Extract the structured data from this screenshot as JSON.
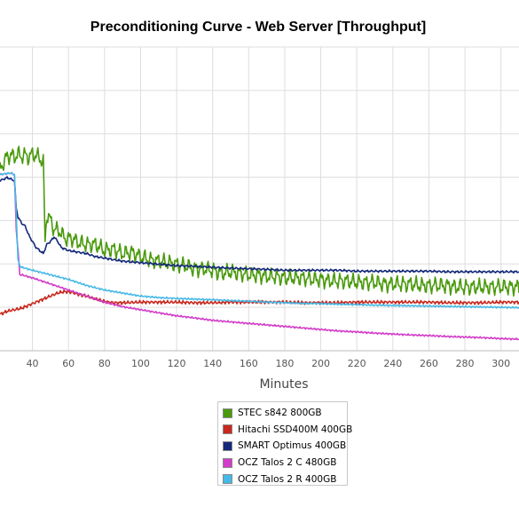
{
  "chart_data": {
    "type": "line",
    "title": "Preconditioning Curve - Web Server [Throughput]",
    "xlabel": "Minutes",
    "ylabel": "",
    "xlim": [
      22,
      310
    ],
    "ylim": [
      0,
      1
    ],
    "x_ticks": [
      40,
      60,
      80,
      100,
      120,
      140,
      160,
      180,
      200,
      220,
      240,
      260,
      280,
      300
    ],
    "grid": true,
    "legend_position": "bottom-center",
    "series": [
      {
        "name": "STEC s842 800GB",
        "color": "#4a9a0c",
        "x": [
          22,
          24,
          26,
          28,
          30,
          32,
          34,
          36,
          38,
          40,
          42,
          44,
          46,
          47,
          48,
          50,
          52,
          55,
          58,
          62,
          66,
          70,
          75,
          80,
          85,
          90,
          95,
          100,
          105,
          110,
          115,
          120,
          125,
          130,
          135,
          140,
          145,
          150,
          155,
          160,
          165,
          170,
          175,
          180,
          185,
          190,
          195,
          200,
          205,
          210,
          215,
          220,
          225,
          230,
          235,
          240,
          245,
          250,
          255,
          260,
          265,
          270,
          275,
          280,
          285,
          290,
          295,
          300,
          305,
          310
        ],
        "y": [
          0.6,
          0.62,
          0.64,
          0.645,
          0.638,
          0.648,
          0.64,
          0.645,
          0.637,
          0.648,
          0.642,
          0.635,
          0.62,
          0.36,
          0.45,
          0.43,
          0.4,
          0.395,
          0.37,
          0.37,
          0.355,
          0.35,
          0.35,
          0.33,
          0.335,
          0.32,
          0.325,
          0.31,
          0.3,
          0.295,
          0.29,
          0.285,
          0.28,
          0.27,
          0.27,
          0.265,
          0.255,
          0.26,
          0.255,
          0.25,
          0.25,
          0.245,
          0.245,
          0.24,
          0.24,
          0.24,
          0.235,
          0.235,
          0.23,
          0.23,
          0.23,
          0.225,
          0.225,
          0.225,
          0.22,
          0.22,
          0.22,
          0.22,
          0.215,
          0.215,
          0.215,
          0.215,
          0.21,
          0.21,
          0.21,
          0.21,
          0.21,
          0.21,
          0.21,
          0.21
        ],
        "noise": 0.03,
        "noise_period": 3.5
      },
      {
        "name": "Hitachi SSD400M 400GB",
        "color": "#c8281e",
        "x": [
          22,
          26,
          30,
          34,
          38,
          42,
          46,
          50,
          54,
          58,
          62,
          66,
          70,
          74,
          78,
          82,
          86,
          90,
          100,
          110,
          120,
          130,
          140,
          150,
          160,
          170,
          180,
          190,
          200,
          210,
          220,
          230,
          240,
          250,
          260,
          270,
          280,
          290,
          300,
          310
        ],
        "y": [
          0.12,
          0.13,
          0.135,
          0.14,
          0.15,
          0.16,
          0.17,
          0.18,
          0.19,
          0.195,
          0.192,
          0.185,
          0.18,
          0.172,
          0.165,
          0.16,
          0.158,
          0.158,
          0.16,
          0.16,
          0.16,
          0.158,
          0.158,
          0.16,
          0.16,
          0.16,
          0.16,
          0.158,
          0.158,
          0.158,
          0.16,
          0.16,
          0.16,
          0.16,
          0.16,
          0.158,
          0.158,
          0.158,
          0.16,
          0.16
        ],
        "noise": 0.006,
        "noise_period": 2.2
      },
      {
        "name": "SMART Optimus 400GB",
        "color": "#14287a",
        "x": [
          22,
          26,
          28,
          30,
          31,
          32,
          33,
          34,
          36,
          38,
          40,
          42,
          44,
          46,
          48,
          50,
          52,
          54,
          56,
          60,
          65,
          70,
          75,
          80,
          90,
          100,
          110,
          120,
          130,
          140,
          150,
          160,
          170,
          180,
          190,
          200,
          210,
          220,
          230,
          240,
          250,
          260,
          270,
          280,
          290,
          300,
          310
        ],
        "y": [
          0.56,
          0.57,
          0.565,
          0.56,
          0.47,
          0.44,
          0.43,
          0.42,
          0.41,
          0.38,
          0.36,
          0.34,
          0.33,
          0.32,
          0.35,
          0.36,
          0.375,
          0.36,
          0.34,
          0.33,
          0.325,
          0.32,
          0.31,
          0.305,
          0.295,
          0.29,
          0.285,
          0.28,
          0.278,
          0.275,
          0.272,
          0.27,
          0.268,
          0.265,
          0.265,
          0.265,
          0.265,
          0.262,
          0.262,
          0.262,
          0.262,
          0.262,
          0.26,
          0.26,
          0.26,
          0.26,
          0.26
        ],
        "noise": 0.004,
        "noise_period": 2.5
      },
      {
        "name": "OCZ Talos 2 C 480GB",
        "color": "#d23cc8",
        "x": [
          22,
          24,
          28,
          30,
          31,
          32,
          33,
          34,
          40,
          50,
          60,
          70,
          80,
          90,
          100,
          110,
          120,
          130,
          140,
          150,
          160,
          170,
          180,
          190,
          200,
          210,
          220,
          230,
          240,
          250,
          260,
          270,
          280,
          290,
          300,
          310
        ],
        "y": [
          0.58,
          0.582,
          0.585,
          0.58,
          0.4,
          0.33,
          0.25,
          0.25,
          0.24,
          0.22,
          0.2,
          0.18,
          0.16,
          0.145,
          0.135,
          0.125,
          0.115,
          0.108,
          0.1,
          0.095,
          0.09,
          0.085,
          0.08,
          0.075,
          0.07,
          0.065,
          0.062,
          0.058,
          0.055,
          0.052,
          0.05,
          0.047,
          0.045,
          0.043,
          0.04,
          0.038
        ],
        "noise": 0.003,
        "noise_period": 2.0
      },
      {
        "name": "OCZ Talos 2 R 400GB",
        "color": "#46b9e6",
        "x": [
          22,
          24,
          28,
          30,
          31,
          32,
          33,
          34,
          40,
          50,
          60,
          70,
          80,
          90,
          100,
          110,
          120,
          130,
          140,
          150,
          160,
          170,
          180,
          190,
          200,
          210,
          220,
          230,
          240,
          250,
          260,
          270,
          280,
          290,
          300,
          310
        ],
        "y": [
          0.58,
          0.582,
          0.585,
          0.58,
          0.45,
          0.3,
          0.28,
          0.275,
          0.265,
          0.25,
          0.235,
          0.215,
          0.2,
          0.19,
          0.18,
          0.175,
          0.172,
          0.17,
          0.168,
          0.165,
          0.163,
          0.16,
          0.158,
          0.156,
          0.155,
          0.153,
          0.152,
          0.15,
          0.149,
          0.148,
          0.147,
          0.146,
          0.145,
          0.144,
          0.143,
          0.142
        ],
        "noise": 0.003,
        "noise_period": 2.0
      }
    ]
  }
}
